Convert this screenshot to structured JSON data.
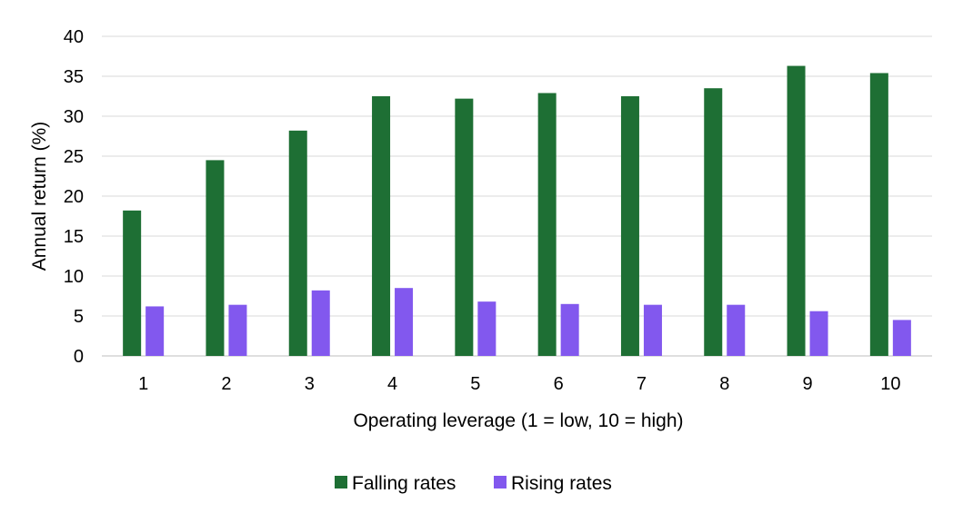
{
  "chart_data": {
    "type": "bar",
    "title": "",
    "xlabel": "Operating leverage (1 = low, 10 = high)",
    "ylabel": "Annual return (%)",
    "categories": [
      "1",
      "2",
      "3",
      "4",
      "5",
      "6",
      "7",
      "8",
      "9",
      "10"
    ],
    "series": [
      {
        "name": "Falling rates",
        "color": "#1e6f34",
        "values": [
          18.2,
          24.5,
          28.2,
          32.5,
          32.2,
          32.9,
          32.5,
          33.5,
          36.3,
          35.4
        ]
      },
      {
        "name": "Rising rates",
        "color": "#8258ee",
        "values": [
          6.2,
          6.4,
          8.2,
          8.5,
          6.8,
          6.5,
          6.4,
          6.4,
          5.6,
          4.5
        ]
      }
    ],
    "ylim": [
      0,
      40
    ],
    "yticks": [
      "0",
      "5",
      "10",
      "15",
      "20",
      "25",
      "30",
      "35",
      "40"
    ],
    "grid": true,
    "gridline_color": "#d9d9d9",
    "legend_position": "bottom"
  }
}
